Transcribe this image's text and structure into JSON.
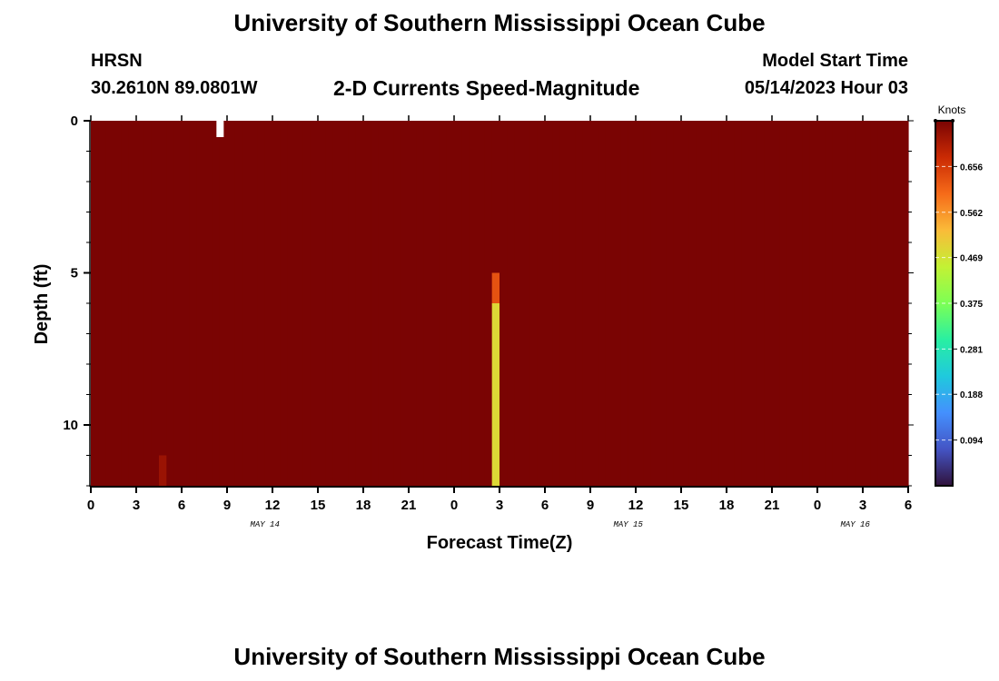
{
  "header": {
    "title": "University of Southern Mississippi Ocean Cube",
    "station": "HRSN",
    "coords": "30.2610N  89.0801W",
    "subtitle": "2-D Currents Speed-Magnitude",
    "model_start_label": "Model Start Time",
    "model_start_value": "05/14/2023 Hour 03"
  },
  "footer": {
    "title": "University of Southern Mississippi Ocean Cube"
  },
  "chart_data": {
    "type": "heatmap",
    "xlabel": "Forecast Time(Z)",
    "ylabel": "Depth (ft)",
    "x_range_hours": [
      0,
      54
    ],
    "x_ticks": [
      "0",
      "3",
      "6",
      "9",
      "12",
      "15",
      "18",
      "21",
      "0",
      "3",
      "6",
      "9",
      "12",
      "15",
      "18",
      "21",
      "0",
      "3",
      "6"
    ],
    "date_labels": [
      {
        "label": "MAY 14",
        "hour": 11.5
      },
      {
        "label": "MAY 15",
        "hour": 35.5
      },
      {
        "label": "MAY 16",
        "hour": 50.5
      }
    ],
    "y_range": [
      0,
      12
    ],
    "y_ticks": [
      "0",
      "5",
      "10"
    ],
    "y_tick_values": [
      0,
      5,
      10
    ],
    "colorbar": {
      "label": "Knots",
      "min": 0.0,
      "max": 0.75,
      "ticks": [
        "0.094",
        "0.188",
        "0.281",
        "0.375",
        "0.469",
        "0.562",
        "0.656"
      ],
      "tick_values": [
        0.094,
        0.188,
        0.281,
        0.375,
        0.469,
        0.562,
        0.656
      ]
    },
    "time_step_hours": 0.5,
    "layers": 12,
    "grid": true
  }
}
